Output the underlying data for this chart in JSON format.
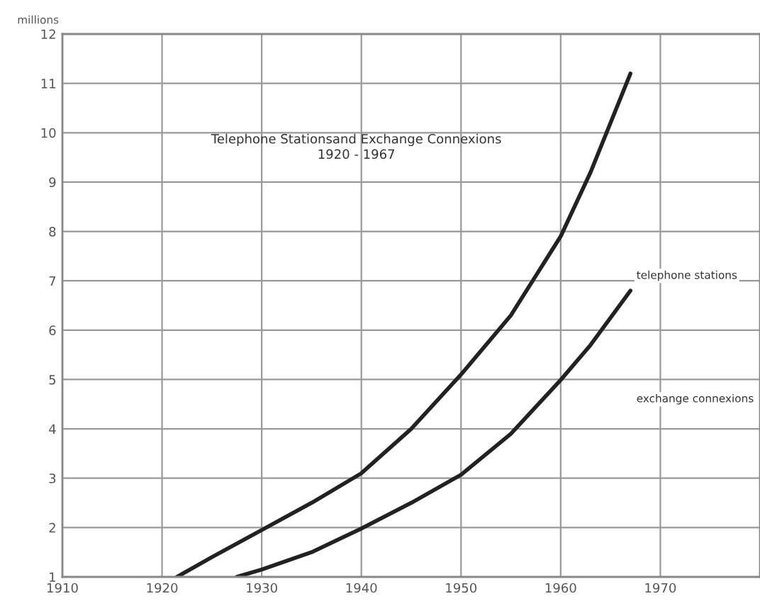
{
  "chart_data": {
    "type": "line",
    "title": "Telephone Stationsand Exchange Connexions\n1920 - 1967",
    "ylabel": "millions",
    "xlim": [
      1910,
      1980
    ],
    "ylim": [
      1,
      12
    ],
    "xticks": [
      1910,
      1920,
      1930,
      1940,
      1950,
      1960,
      1970
    ],
    "yticks": [
      1,
      2,
      3,
      4,
      5,
      6,
      7,
      8,
      9,
      10,
      11,
      12
    ],
    "grid": true,
    "legend": false,
    "marker": "none",
    "line_style": "solid",
    "series": [
      {
        "name": "telephone stations",
        "color": "#222222",
        "x": [
          1921.5,
          1925,
          1930,
          1935,
          1940,
          1945,
          1950,
          1955,
          1960,
          1963,
          1967
        ],
        "values": [
          1.0,
          1.4,
          1.95,
          2.5,
          3.1,
          4.0,
          5.1,
          6.3,
          7.9,
          9.2,
          11.2
        ]
      },
      {
        "name": "exchange connexions",
        "color": "#222222",
        "x": [
          1927.5,
          1930,
          1935,
          1940,
          1945,
          1950,
          1955,
          1960,
          1963,
          1967
        ],
        "values": [
          1.0,
          1.15,
          1.5,
          1.98,
          2.5,
          3.07,
          3.9,
          4.99,
          5.7,
          6.8
        ]
      }
    ]
  }
}
